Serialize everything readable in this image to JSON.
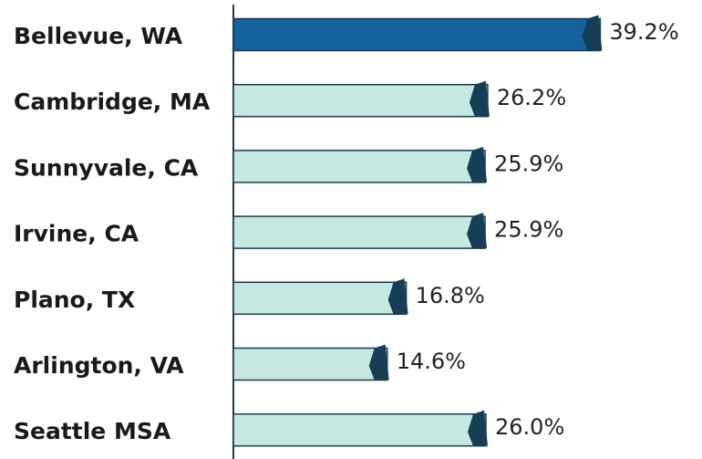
{
  "chart_data": {
    "type": "bar",
    "categories": [
      "Bellevue, WA",
      "Cambridge, MA",
      "Sunnyvale, CA",
      "Irvine, CA",
      "Plano, TX",
      "Arlington, VA",
      "Seattle MSA"
    ],
    "values": [
      39.2,
      26.2,
      25.9,
      25.9,
      16.8,
      14.6,
      26.0
    ],
    "value_labels": [
      "39.2%",
      "26.2%",
      "25.9%",
      "25.9%",
      "16.8%",
      "14.6%",
      "26.0%"
    ],
    "colors": [
      "#13639c",
      "#c5e8e1",
      "#c5e8e1",
      "#c5e8e1",
      "#c5e8e1",
      "#c5e8e1",
      "#c5e8e1"
    ]
  }
}
